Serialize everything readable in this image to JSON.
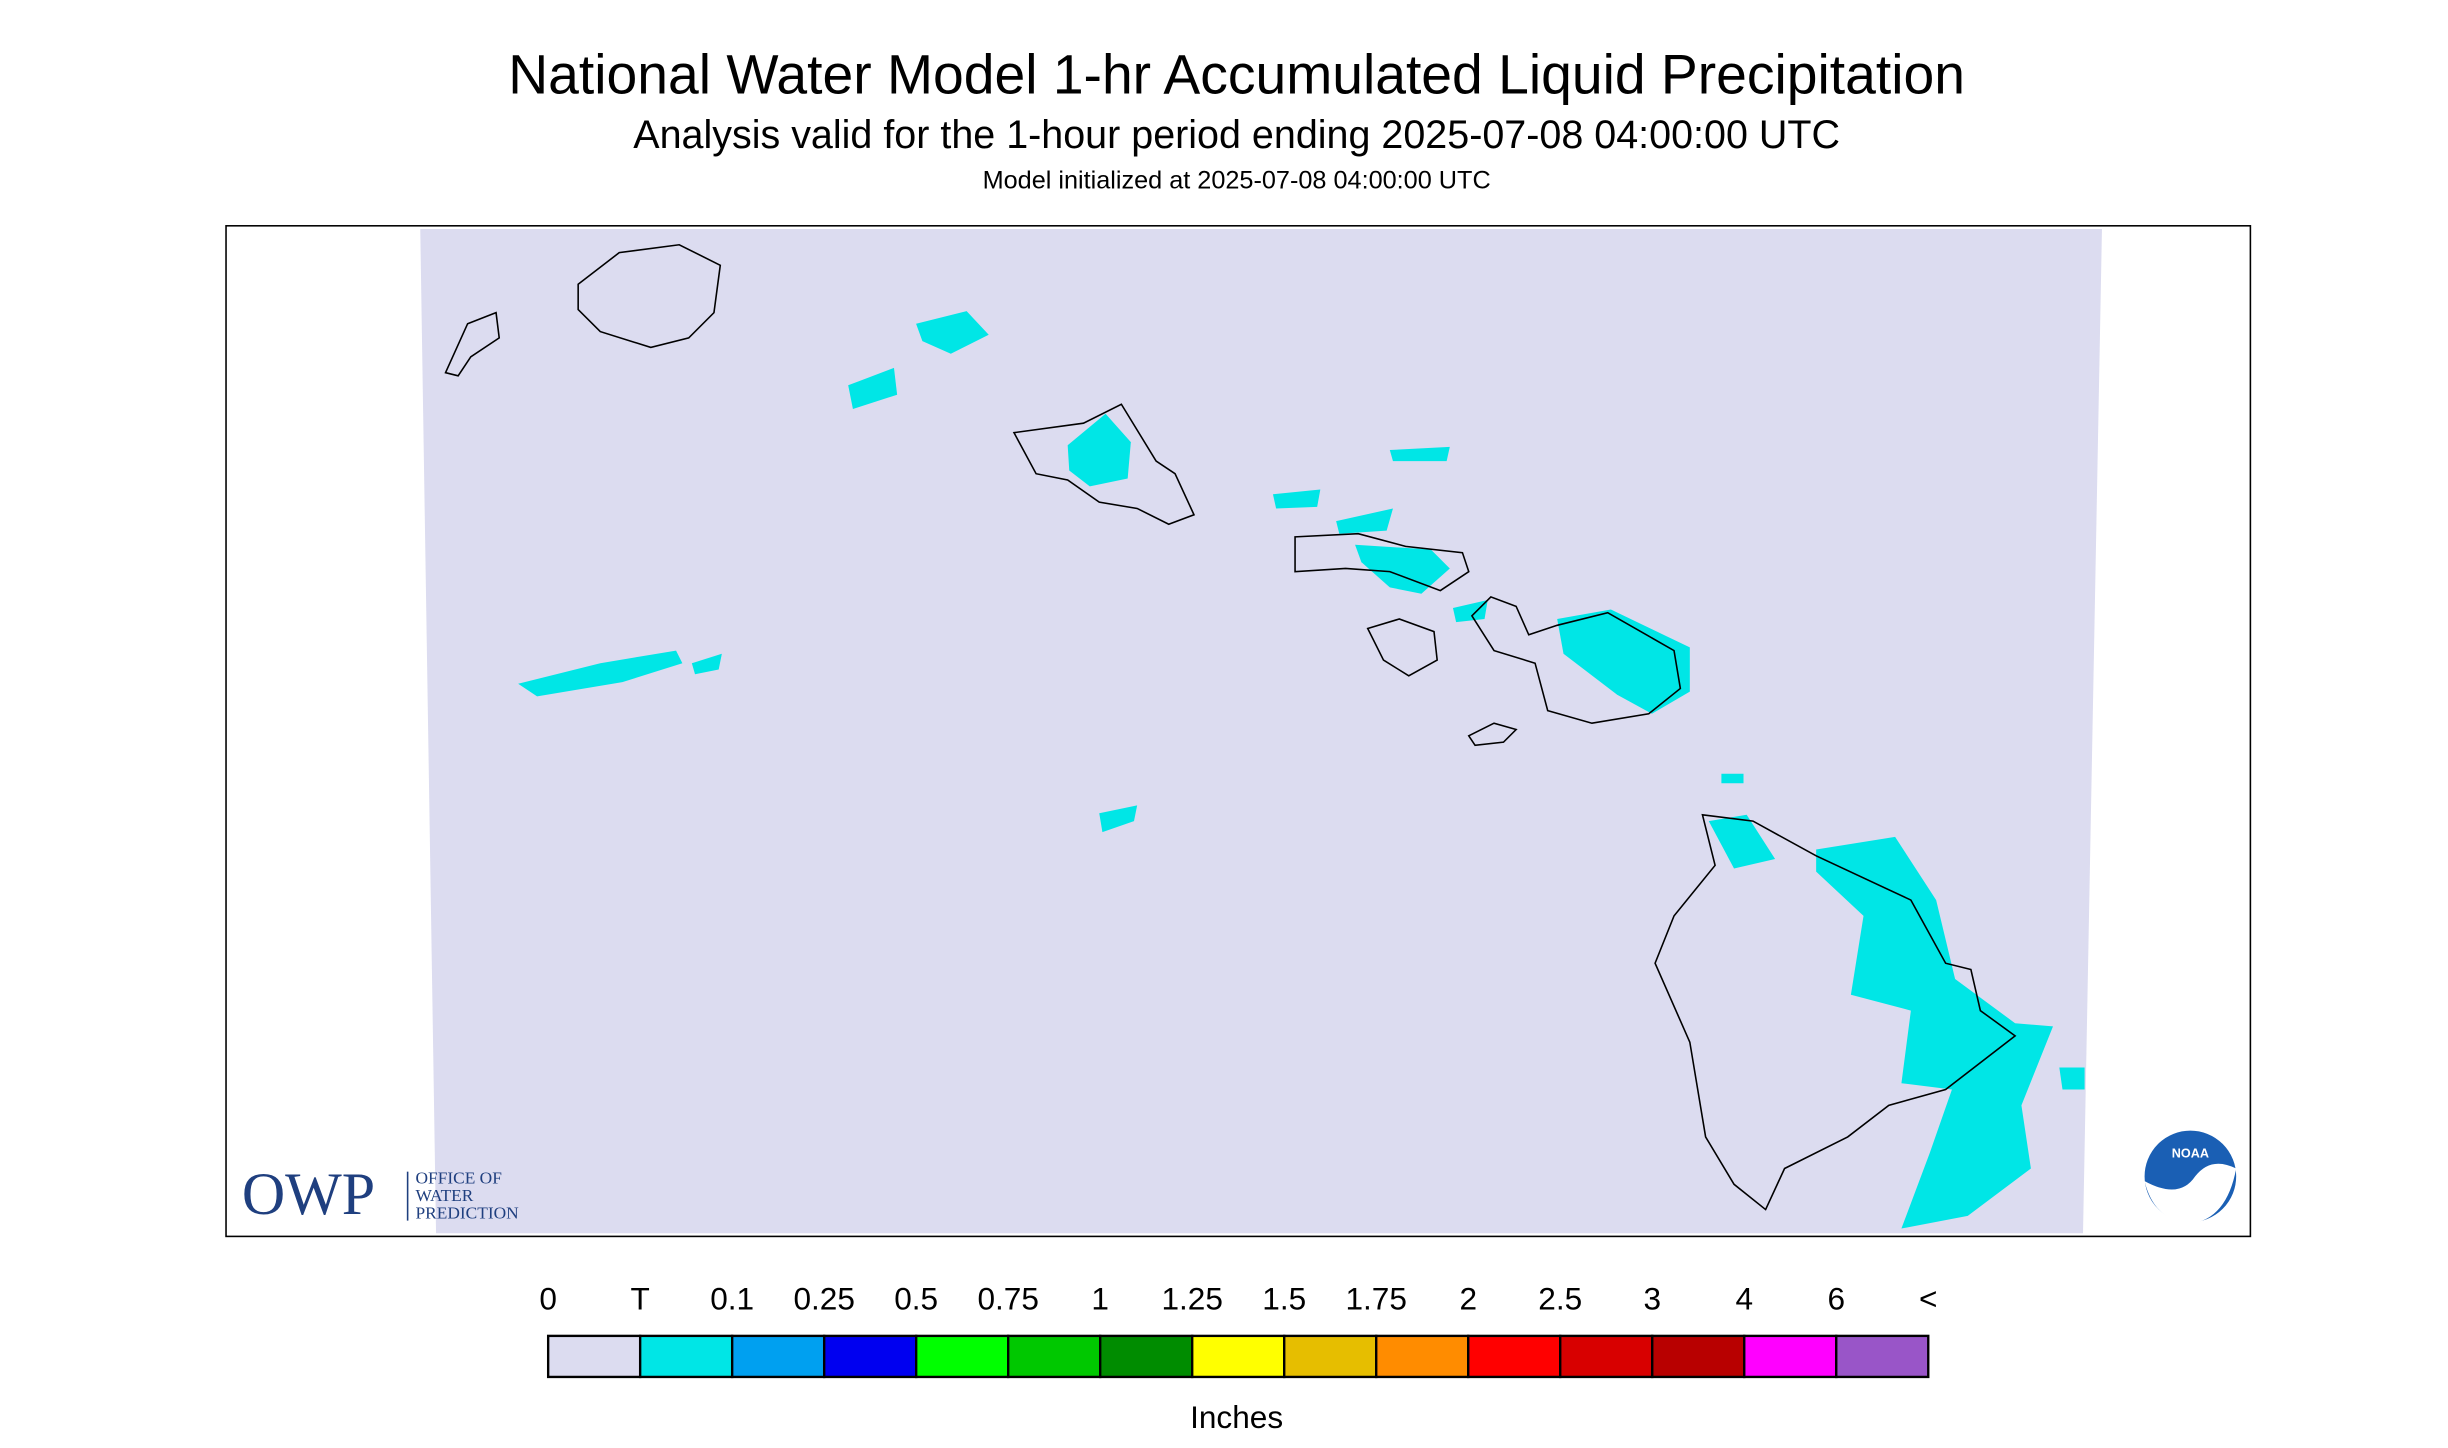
{
  "header": {
    "title": "National Water Model 1-hr Accumulated Liquid Precipitation",
    "subtitle": "Analysis valid for the 1-hour period ending 2025-07-08 04:00:00 UTC",
    "init": "Model initialized at 2025-07-08 04:00:00 UTC"
  },
  "logos": {
    "owp": "OWP",
    "owp_lines": [
      "OFFICE OF",
      "WATER",
      "PREDICTION"
    ],
    "noaa": "NOAA"
  },
  "legend": {
    "labels": [
      "0",
      "T",
      "0.1",
      "0.25",
      "0.5",
      "0.75",
      "1",
      "1.25",
      "1.5",
      "1.75",
      "2",
      "2.5",
      "3",
      "4",
      "6",
      "<"
    ],
    "colors": [
      "#dcdcf0",
      "#00e6e6",
      "#00a0f0",
      "#0000f0",
      "#00ff00",
      "#00c800",
      "#008c00",
      "#ffff00",
      "#e6be00",
      "#ff8c00",
      "#ff0000",
      "#d80000",
      "#b80000",
      "#ff00ff",
      "#9955c8"
    ],
    "units": "Inches"
  }
}
